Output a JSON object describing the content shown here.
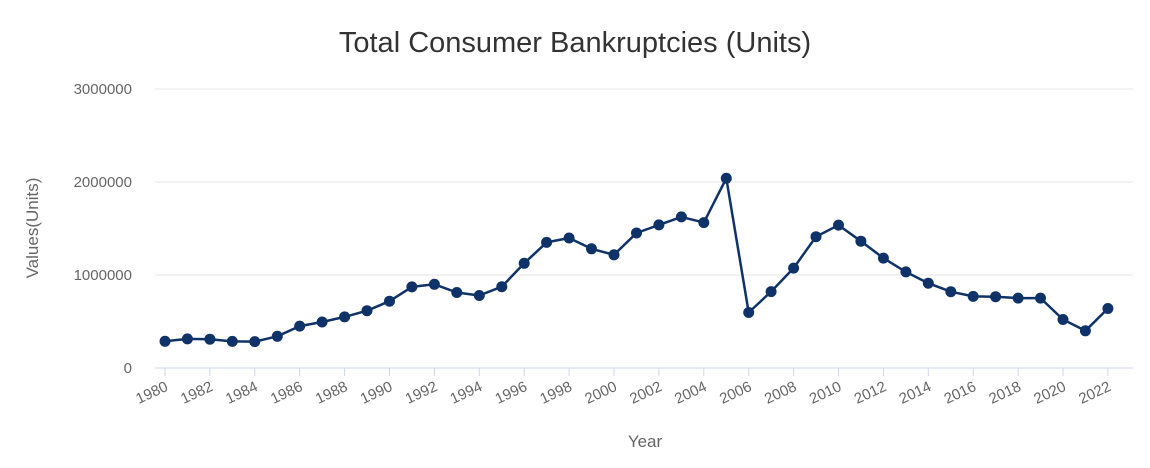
{
  "chart_data": {
    "type": "line",
    "title": "Total Consumer Bankruptcies (Units)",
    "xlabel": "Year",
    "ylabel": "Values(Units)",
    "ylim": [
      0,
      3000000
    ],
    "yticks": [
      "0",
      "1000000",
      "2000000",
      "3000000"
    ],
    "xtick_labels": [
      "1980",
      "1982",
      "1984",
      "1986",
      "1988",
      "1990",
      "1992",
      "1994",
      "1996",
      "1998",
      "2000",
      "2002",
      "2004",
      "2006",
      "2008",
      "2010",
      "2012",
      "2014",
      "2016",
      "2018",
      "2020",
      "2022"
    ],
    "grid": true,
    "legend": "none",
    "colors": {
      "series": "#0f3368",
      "grid": "#e6e6e6",
      "axis": "#ccd6eb"
    },
    "series": [
      {
        "x": [
          1980,
          1981,
          1982,
          1983,
          1984,
          1985,
          1986,
          1987,
          1988,
          1989,
          1990,
          1991,
          1992,
          1993,
          1994,
          1995,
          1996,
          1997,
          1998,
          1999,
          2000,
          2001,
          2002,
          2003,
          2004,
          2005,
          2006,
          2007,
          2008,
          2009,
          2010,
          2011,
          2012,
          2013,
          2014,
          2015,
          2016,
          2017,
          2018,
          2019,
          2020,
          2021,
          2022
        ],
        "values": [
          287000,
          313000,
          310000,
          286000,
          284000,
          341000,
          450000,
          495000,
          549000,
          616000,
          718000,
          872000,
          900000,
          812000,
          780000,
          874000,
          1126000,
          1350000,
          1398000,
          1282000,
          1217000,
          1452000,
          1539000,
          1625000,
          1563000,
          2040000,
          597000,
          822000,
          1074000,
          1412000,
          1537000,
          1363000,
          1182000,
          1033000,
          912000,
          820000,
          770000,
          767000,
          752000,
          752000,
          522000,
          400000,
          640000
        ]
      }
    ]
  }
}
